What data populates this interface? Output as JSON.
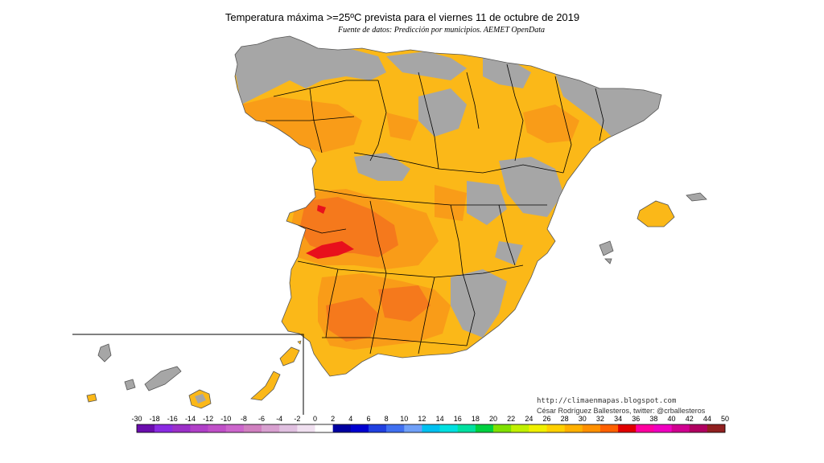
{
  "title": "Temperatura máxima >=25ºC prevista para el viernes 11 de octubre de 2019",
  "subtitle": "Fuente de datos: Predicción por municipios. AEMET OpenData",
  "credits": {
    "url": "http://climaenmapas.blogspot.com",
    "author": "César Rodríguez Ballesteros, twitter: @crballesteros"
  },
  "legend": {
    "ticks": [
      "-30",
      "-18",
      "-16",
      "-14",
      "-12",
      "-10",
      "-8",
      "-6",
      "-4",
      "-2",
      "0",
      "2",
      "4",
      "6",
      "8",
      "10",
      "12",
      "14",
      "16",
      "18",
      "20",
      "22",
      "24",
      "26",
      "28",
      "30",
      "32",
      "34",
      "36",
      "38",
      "40",
      "42",
      "44",
      "50"
    ],
    "colors": [
      "#6a0dad",
      "#8a2be2",
      "#9b30c8",
      "#b040c8",
      "#c050c8",
      "#cc66cc",
      "#d080c0",
      "#d8a0d0",
      "#e0c0e0",
      "#f0e0f0",
      "#ffffff",
      "#0000a0",
      "#0000d0",
      "#2040e0",
      "#4070f0",
      "#70a0f8",
      "#00c0f0",
      "#00e0e0",
      "#00e0a0",
      "#00d040",
      "#80e000",
      "#c0f000",
      "#f0f000",
      "#ffd000",
      "#ffb000",
      "#ff9000",
      "#ff6000",
      "#e00000",
      "#ff00a0",
      "#f000c0",
      "#d00090",
      "#b00060",
      "#902020"
    ]
  },
  "map": {
    "region": "Península Ibérica, Baleares y Canarias",
    "colors": {
      "gray": "#a6a6a6",
      "yellow": "#fbb818",
      "orange": "#f99c18",
      "darkorange": "#f5791c",
      "red": "#e8101c",
      "border": "#000000",
      "sea": "#ffffff"
    }
  }
}
